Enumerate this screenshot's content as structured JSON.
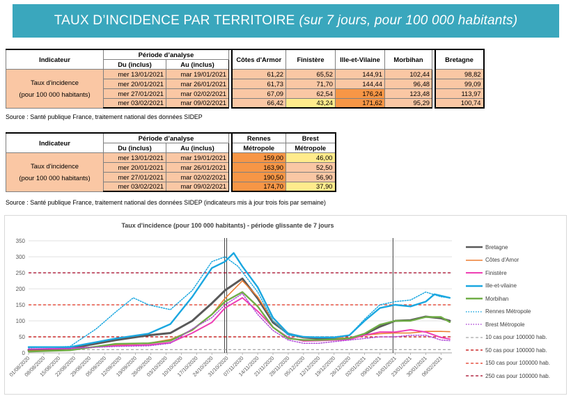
{
  "banner": {
    "title": "TAUX D’INCIDENCE PAR TERRITOIRE",
    "subtitle": "(sur 7 jours, pour 100 000 habitants)"
  },
  "table1": {
    "h_indicateur": "Indicateur",
    "h_periode": "Période d’analyse",
    "h_du": "Du (inclus)",
    "h_au": "Au (inclus)",
    "cols": [
      "Côtes d'Armor",
      "Finistère",
      "Ille-et-Vilaine",
      "Morbihan",
      "Bretagne"
    ],
    "indicator_line1": "Taux d'incidence",
    "indicator_line2": "(pour 100 000 habitants)",
    "rows": [
      {
        "du": "mer 13/01/2021",
        "au": "mar 19/01/2021",
        "values": [
          "61,22",
          "65,52",
          "144,91",
          "102,44",
          "98,82"
        ]
      },
      {
        "du": "mer 20/01/2021",
        "au": "mar 26/01/2021",
        "values": [
          "61,73",
          "71,70",
          "144,44",
          "96,48",
          "99,09"
        ]
      },
      {
        "du": "mer 27/01/2021",
        "au": "mar 02/02/2021",
        "values": [
          "67,09",
          "62,54",
          "176,24",
          "123,48",
          "113,97"
        ]
      },
      {
        "du": "mer 03/02/2021",
        "au": "mar 09/02/2021",
        "values": [
          "66,42",
          "43,24",
          "171,62",
          "95,29",
          "100,74"
        ]
      }
    ],
    "source": "Source  : Santé publique France, traitement national des données SIDEP"
  },
  "table2": {
    "h_indicateur": "Indicateur",
    "h_periode": "Période d’analyse",
    "h_du": "Du (inclus)",
    "h_au": "Au (inclus)",
    "col1_line1": "Rennes",
    "col1_line2": "Métropole",
    "col2_line1": "Brest",
    "col2_line2": "Métropole",
    "indicator_line1": "Taux d'incidence",
    "indicator_line2": "(pour 100 000 habitants)",
    "rows": [
      {
        "du": "mer 13/01/2021",
        "au": "mar 19/01/2021",
        "values": [
          "159,00",
          "46,00"
        ]
      },
      {
        "du": "mer 20/01/2021",
        "au": "mar 26/01/2021",
        "values": [
          "163,90",
          "52,50"
        ]
      },
      {
        "du": "mer 27/01/2021",
        "au": "mar 02/02/2021",
        "values": [
          "190,50",
          "56,90"
        ]
      },
      {
        "du": "mer 03/02/2021",
        "au": "mar 09/02/2021",
        "values": [
          "174,70",
          "37,90"
        ]
      }
    ],
    "source": "Source  : Santé publique France, traitement national des données SIDEP (indicateurs mis à jour trois fois par semaine)"
  },
  "colors": {
    "banner": "#3aa7bd",
    "orange": "#f79646",
    "light_orange": "#fac7a4",
    "yellow": "#ffeb8c",
    "bretagne": "#595959",
    "cotes": "#ed7d31",
    "finistere": "#ee3fb4",
    "ille": "#1aa7e0",
    "morbihan": "#70ad47",
    "rennes": "#1aa7e0",
    "brest": "#b04bd8"
  },
  "chart_data": {
    "type": "line",
    "title": "Taux d'incidence (pour 100 000 habitants) - période glissante de 7 jours",
    "ylim": [
      0,
      350
    ],
    "yticks": [
      0,
      50,
      100,
      150,
      200,
      250,
      300,
      350
    ],
    "xlim": [
      "01/08/2020",
      "11/02/2021"
    ],
    "xticks": [
      "01/08/2020",
      "08/08/2020",
      "15/08/2020",
      "22/08/2020",
      "29/08/2020",
      "05/09/2020",
      "12/09/2020",
      "19/09/2020",
      "26/09/2020",
      "03/10/2020",
      "10/10/2020",
      "17/10/2020",
      "24/10/2020",
      "31/10/2020",
      "07/11/2020",
      "14/11/2020",
      "21/11/2020",
      "28/11/2020",
      "05/12/2020",
      "12/12/2020",
      "19/12/2020",
      "26/12/2020",
      "02/01/2021",
      "09/01/2021",
      "16/01/2021",
      "23/01/2021",
      "30/01/2021",
      "06/02/2021"
    ],
    "vertical_markers": [
      "30/10/2020",
      "30/10/2020",
      "15/01/2021"
    ],
    "thresholds": [
      {
        "value": 10,
        "name": "10 cas pour 100000 hab.",
        "color": "#a6a6a6"
      },
      {
        "value": 50,
        "name": "50 cas pour 100000 hab.",
        "color": "#c00000"
      },
      {
        "value": 150,
        "name": "150 cas pour 100000 hab.",
        "color": "#e0301e"
      },
      {
        "value": 250,
        "name": "250 cas pour 100000 hab.",
        "color": "#a50021"
      }
    ],
    "series": [
      {
        "name": "Bretagne",
        "color": "#595959",
        "style": "solid",
        "width": 3,
        "points": [
          [
            "01/08/2020",
            9
          ],
          [
            "20/08/2020",
            14
          ],
          [
            "10/09/2020",
            40
          ],
          [
            "25/09/2020",
            55
          ],
          [
            "05/10/2020",
            62
          ],
          [
            "15/10/2020",
            100
          ],
          [
            "24/10/2020",
            155
          ],
          [
            "30/10/2020",
            195
          ],
          [
            "07/11/2020",
            232
          ],
          [
            "14/11/2020",
            170
          ],
          [
            "21/11/2020",
            95
          ],
          [
            "28/11/2020",
            60
          ],
          [
            "05/12/2020",
            48
          ],
          [
            "12/12/2020",
            45
          ],
          [
            "19/12/2020",
            44
          ],
          [
            "26/12/2020",
            45
          ],
          [
            "02/01/2021",
            58
          ],
          [
            "09/01/2021",
            82
          ],
          [
            "16/01/2021",
            100
          ],
          [
            "23/01/2021",
            102
          ],
          [
            "30/01/2021",
            113
          ],
          [
            "06/02/2021",
            108
          ],
          [
            "10/02/2021",
            100
          ]
        ]
      },
      {
        "name": "Côtes d'Amor",
        "color": "#ed7d31",
        "style": "solid",
        "width": 1.6,
        "points": [
          [
            "01/08/2020",
            6
          ],
          [
            "20/08/2020",
            9
          ],
          [
            "10/09/2020",
            25
          ],
          [
            "25/09/2020",
            30
          ],
          [
            "05/10/2020",
            42
          ],
          [
            "15/10/2020",
            70
          ],
          [
            "24/10/2020",
            120
          ],
          [
            "30/10/2020",
            170
          ],
          [
            "07/11/2020",
            225
          ],
          [
            "14/11/2020",
            175
          ],
          [
            "21/11/2020",
            100
          ],
          [
            "28/11/2020",
            62
          ],
          [
            "05/12/2020",
            48
          ],
          [
            "12/12/2020",
            48
          ],
          [
            "19/12/2020",
            48
          ],
          [
            "26/12/2020",
            45
          ],
          [
            "02/01/2021",
            55
          ],
          [
            "09/01/2021",
            60
          ],
          [
            "16/01/2021",
            62
          ],
          [
            "23/01/2021",
            62
          ],
          [
            "30/01/2021",
            67
          ],
          [
            "06/02/2021",
            67
          ],
          [
            "10/02/2021",
            66
          ]
        ]
      },
      {
        "name": "Finistère",
        "color": "#ee3fb4",
        "style": "solid",
        "width": 2,
        "points": [
          [
            "01/08/2020",
            12
          ],
          [
            "20/08/2020",
            14
          ],
          [
            "10/09/2020",
            22
          ],
          [
            "25/09/2020",
            25
          ],
          [
            "05/10/2020",
            32
          ],
          [
            "15/10/2020",
            62
          ],
          [
            "24/10/2020",
            95
          ],
          [
            "30/10/2020",
            140
          ],
          [
            "07/11/2020",
            172
          ],
          [
            "14/11/2020",
            130
          ],
          [
            "21/11/2020",
            80
          ],
          [
            "28/11/2020",
            48
          ],
          [
            "05/12/2020",
            37
          ],
          [
            "12/12/2020",
            38
          ],
          [
            "19/12/2020",
            40
          ],
          [
            "26/12/2020",
            42
          ],
          [
            "02/01/2021",
            55
          ],
          [
            "09/01/2021",
            65
          ],
          [
            "16/01/2021",
            65
          ],
          [
            "23/01/2021",
            72
          ],
          [
            "30/01/2021",
            65
          ],
          [
            "06/02/2021",
            48
          ],
          [
            "10/02/2021",
            43
          ]
        ]
      },
      {
        "name": "Ille-et-vilaine",
        "color": "#1aa7e0",
        "style": "solid",
        "width": 2.4,
        "points": [
          [
            "01/08/2020",
            18
          ],
          [
            "20/08/2020",
            18
          ],
          [
            "10/09/2020",
            45
          ],
          [
            "25/09/2020",
            60
          ],
          [
            "05/10/2020",
            90
          ],
          [
            "15/10/2020",
            175
          ],
          [
            "24/10/2020",
            265
          ],
          [
            "30/10/2020",
            285
          ],
          [
            "03/11/2020",
            312
          ],
          [
            "07/11/2020",
            270
          ],
          [
            "14/11/2020",
            205
          ],
          [
            "21/11/2020",
            110
          ],
          [
            "28/11/2020",
            60
          ],
          [
            "05/12/2020",
            50
          ],
          [
            "12/12/2020",
            48
          ],
          [
            "19/12/2020",
            48
          ],
          [
            "26/12/2020",
            55
          ],
          [
            "02/01/2021",
            100
          ],
          [
            "09/01/2021",
            140
          ],
          [
            "16/01/2021",
            150
          ],
          [
            "23/01/2021",
            145
          ],
          [
            "30/01/2021",
            160
          ],
          [
            "03/02/2021",
            183
          ],
          [
            "10/02/2021",
            172
          ]
        ]
      },
      {
        "name": "Morbihan",
        "color": "#70ad47",
        "style": "solid",
        "width": 2.4,
        "points": [
          [
            "01/08/2020",
            4
          ],
          [
            "20/08/2020",
            8
          ],
          [
            "10/09/2020",
            28
          ],
          [
            "25/09/2020",
            30
          ],
          [
            "05/10/2020",
            38
          ],
          [
            "15/10/2020",
            72
          ],
          [
            "24/10/2020",
            120
          ],
          [
            "30/10/2020",
            160
          ],
          [
            "07/11/2020",
            190
          ],
          [
            "14/11/2020",
            145
          ],
          [
            "21/11/2020",
            80
          ],
          [
            "28/11/2020",
            45
          ],
          [
            "05/12/2020",
            40
          ],
          [
            "12/12/2020",
            40
          ],
          [
            "19/12/2020",
            42
          ],
          [
            "26/12/2020",
            45
          ],
          [
            "02/01/2021",
            60
          ],
          [
            "09/01/2021",
            88
          ],
          [
            "16/01/2021",
            100
          ],
          [
            "23/01/2021",
            100
          ],
          [
            "30/01/2021",
            112
          ],
          [
            "06/02/2021",
            112
          ],
          [
            "10/02/2021",
            96
          ]
        ]
      },
      {
        "name": "Rennes Métropole",
        "color": "#1aa7e0",
        "style": "dotted",
        "width": 1.5,
        "points": [
          [
            "01/08/2020",
            16
          ],
          [
            "20/08/2020",
            20
          ],
          [
            "01/09/2020",
            75
          ],
          [
            "10/09/2020",
            128
          ],
          [
            "18/09/2020",
            172
          ],
          [
            "25/09/2020",
            150
          ],
          [
            "05/10/2020",
            135
          ],
          [
            "15/10/2020",
            195
          ],
          [
            "24/10/2020",
            285
          ],
          [
            "30/10/2020",
            300
          ],
          [
            "05/11/2020",
            270
          ],
          [
            "14/11/2020",
            190
          ],
          [
            "21/11/2020",
            100
          ],
          [
            "28/11/2020",
            55
          ],
          [
            "05/12/2020",
            50
          ],
          [
            "12/12/2020",
            50
          ],
          [
            "19/12/2020",
            50
          ],
          [
            "26/12/2020",
            55
          ],
          [
            "02/01/2021",
            105
          ],
          [
            "09/01/2021",
            150
          ],
          [
            "16/01/2021",
            160
          ],
          [
            "23/01/2021",
            165
          ],
          [
            "30/01/2021",
            190
          ],
          [
            "06/02/2021",
            175
          ],
          [
            "10/02/2021",
            172
          ]
        ]
      },
      {
        "name": "Brest Métropole",
        "color": "#b04bd8",
        "style": "dotted",
        "width": 1.5,
        "points": [
          [
            "01/08/2020",
            12
          ],
          [
            "20/08/2020",
            14
          ],
          [
            "10/09/2020",
            20
          ],
          [
            "25/09/2020",
            22
          ],
          [
            "05/10/2020",
            30
          ],
          [
            "15/10/2020",
            75
          ],
          [
            "24/10/2020",
            110
          ],
          [
            "30/10/2020",
            150
          ],
          [
            "07/11/2020",
            185
          ],
          [
            "14/11/2020",
            120
          ],
          [
            "21/11/2020",
            70
          ],
          [
            "28/11/2020",
            40
          ],
          [
            "05/12/2020",
            30
          ],
          [
            "12/12/2020",
            30
          ],
          [
            "19/12/2020",
            35
          ],
          [
            "26/12/2020",
            40
          ],
          [
            "02/01/2021",
            45
          ],
          [
            "09/01/2021",
            50
          ],
          [
            "16/01/2021",
            50
          ],
          [
            "23/01/2021",
            55
          ],
          [
            "30/01/2021",
            55
          ],
          [
            "06/02/2021",
            40
          ],
          [
            "10/02/2021",
            38
          ]
        ]
      }
    ]
  }
}
